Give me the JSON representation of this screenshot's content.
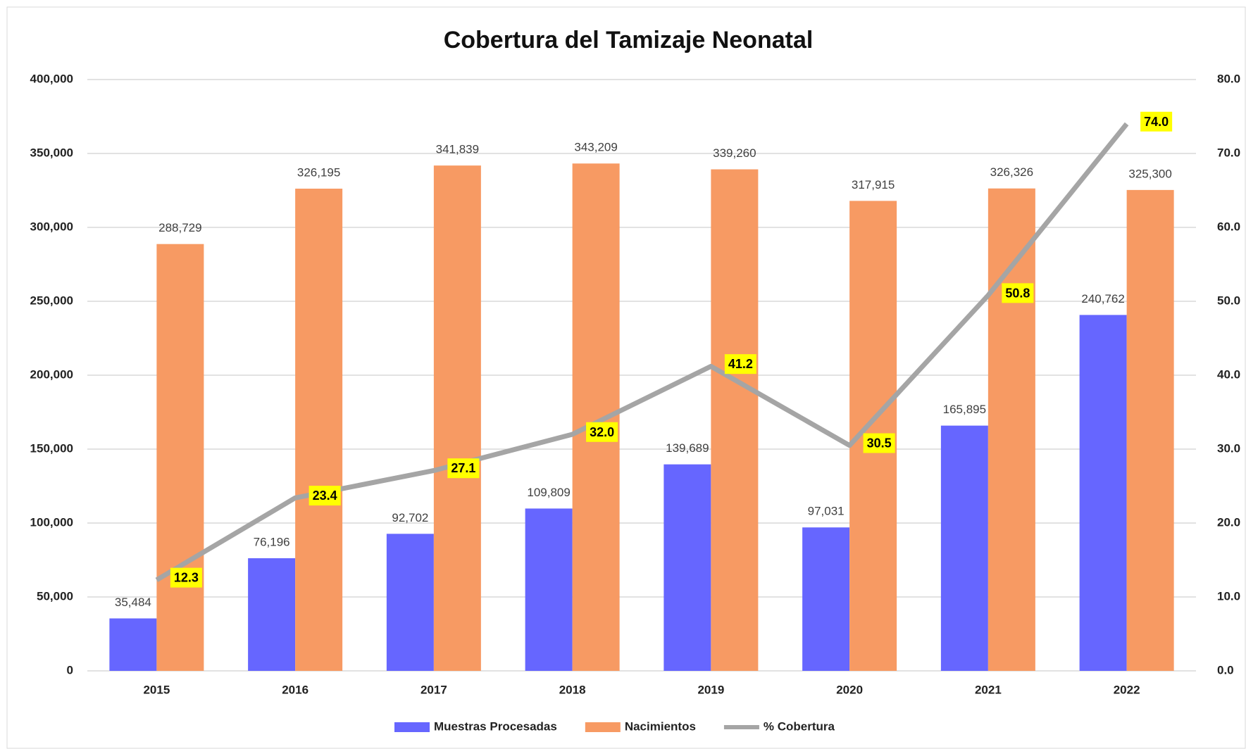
{
  "chart_data": {
    "type": "bar-line",
    "title": "Cobertura del Tamizaje Neonatal",
    "categories": [
      "2015",
      "2016",
      "2017",
      "2018",
      "2019",
      "2020",
      "2021",
      "2022"
    ],
    "series": [
      {
        "name": "Muestras Procesadas",
        "color": "#6666ff",
        "type": "bar",
        "values": [
          35484,
          76196,
          92702,
          109809,
          139689,
          97031,
          165895,
          240762
        ],
        "value_labels": [
          "35,484",
          "76,196",
          "92,702",
          "109,809",
          "139,689",
          "97,031",
          "165,895",
          "240,762"
        ]
      },
      {
        "name": "Nacimientos",
        "color": "#f79a63",
        "type": "bar",
        "values": [
          288729,
          326195,
          341839,
          343209,
          339260,
          317915,
          326326,
          325300
        ],
        "value_labels": [
          "288,729",
          "326,195",
          "341,839",
          "343,209",
          "339,260",
          "317,915",
          "326,326",
          "325,300"
        ]
      },
      {
        "name": "% Cobertura",
        "color": "#a5a5a5",
        "type": "line",
        "axis": "y2",
        "values": [
          12.3,
          23.4,
          27.1,
          32.0,
          41.2,
          30.5,
          50.8,
          74.0
        ],
        "value_labels": [
          "12.3",
          "23.4",
          "27.1",
          "32.0",
          "41.2",
          "30.5",
          "50.8",
          "74.0"
        ]
      }
    ],
    "ylim": [
      0,
      400000
    ],
    "yticks": [
      0,
      {
        "value": 50000,
        "label": "50,000"
      },
      {
        "value": 100000,
        "label": "100,000"
      },
      {
        "value": 150000,
        "label": "150,000"
      },
      {
        "value": 200000,
        "label": "200,000"
      },
      {
        "value": 250000,
        "label": "250,000"
      },
      {
        "value": 300000,
        "label": "300,000"
      },
      {
        "value": 350000,
        "label": "350,000"
      },
      {
        "value": 400000,
        "label": "400,000"
      }
    ],
    "y2lim": [
      0,
      80
    ],
    "y2ticks": [
      {
        "value": 0,
        "label": "0.0"
      },
      {
        "value": 10,
        "label": "10.0"
      },
      {
        "value": 20,
        "label": "20.0"
      },
      {
        "value": 30,
        "label": "30.0"
      },
      {
        "value": 40,
        "label": "40.0"
      },
      {
        "value": 50,
        "label": "50.0"
      },
      {
        "value": 60,
        "label": "60.0"
      },
      {
        "value": 70,
        "label": "70.0"
      },
      {
        "value": 80,
        "label": "80.0"
      }
    ],
    "grid": true,
    "legend": "bottom",
    "label_highlight": "#ffff00"
  }
}
